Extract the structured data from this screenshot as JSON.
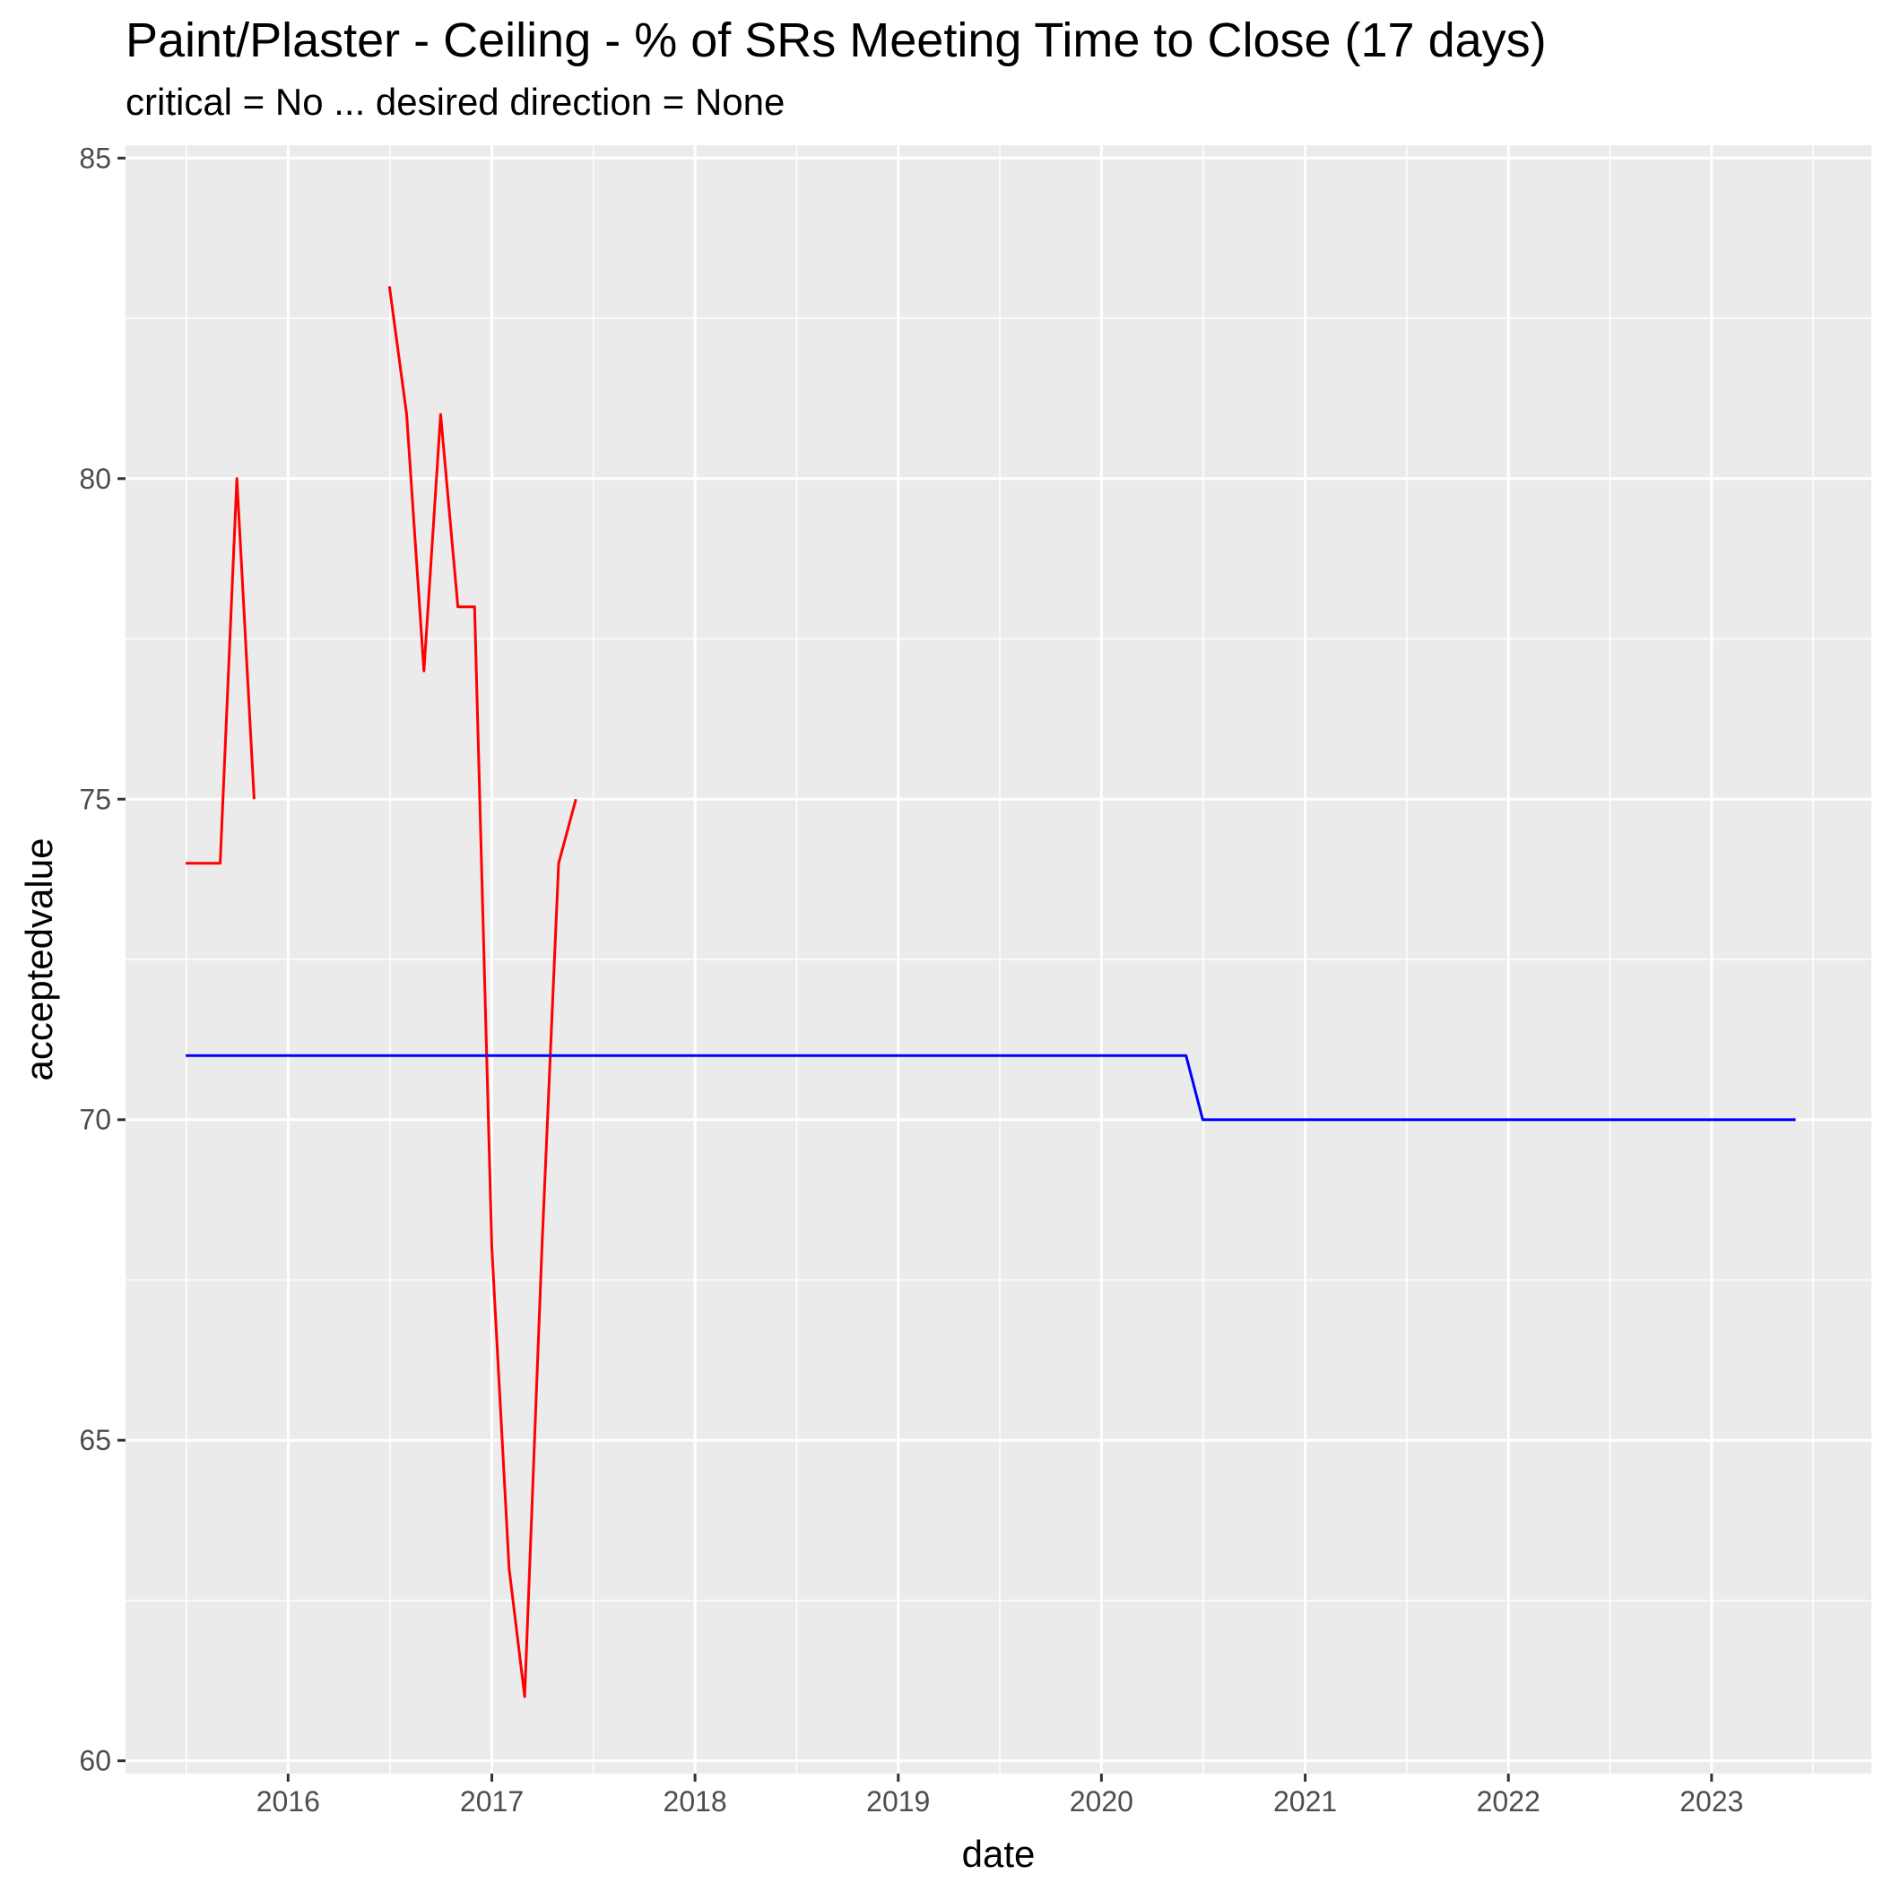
{
  "chart_data": {
    "type": "line",
    "title": "Paint/Plaster - Ceiling - % of SRs Meeting Time to Close (17 days)",
    "subtitle": "critical = No ... desired direction = None",
    "xlabel": "date",
    "ylabel": "acceptedvalue",
    "xlim": [
      "2015-03-15",
      "2023-10-15"
    ],
    "ylim": [
      59.8,
      85.2
    ],
    "yticks": [
      60,
      65,
      70,
      75,
      80,
      85
    ],
    "xticks": [
      "2016-01-01",
      "2017-01-01",
      "2018-01-01",
      "2019-01-01",
      "2020-01-01",
      "2021-01-01",
      "2022-01-01",
      "2023-01-01"
    ],
    "xtick_labels": [
      "2016",
      "2017",
      "2018",
      "2019",
      "2020",
      "2021",
      "2022",
      "2023"
    ],
    "grid": true,
    "background": "#ebebeb",
    "series": [
      {
        "color": "#ff0000",
        "segments": [
          [
            {
              "x": "2015-07-01",
              "y": 74
            },
            {
              "x": "2015-08-01",
              "y": 74
            },
            {
              "x": "2015-09-01",
              "y": 74
            },
            {
              "x": "2015-10-01",
              "y": 80
            },
            {
              "x": "2015-11-01",
              "y": 75
            }
          ],
          [
            {
              "x": "2016-07-01",
              "y": 83
            },
            {
              "x": "2016-08-01",
              "y": 81
            },
            {
              "x": "2016-09-01",
              "y": 77
            },
            {
              "x": "2016-10-01",
              "y": 81
            },
            {
              "x": "2016-11-01",
              "y": 78
            },
            {
              "x": "2016-12-01",
              "y": 78
            },
            {
              "x": "2017-01-01",
              "y": 68
            },
            {
              "x": "2017-02-01",
              "y": 63
            },
            {
              "x": "2017-03-01",
              "y": 61
            },
            {
              "x": "2017-04-01",
              "y": 68
            },
            {
              "x": "2017-05-01",
              "y": 74
            },
            {
              "x": "2017-06-01",
              "y": 75
            }
          ]
        ]
      },
      {
        "color": "#0000ff",
        "segments": [
          [
            {
              "x": "2015-07-01",
              "y": 71
            },
            {
              "x": "2020-06-01",
              "y": 71
            },
            {
              "x": "2020-07-01",
              "y": 70
            },
            {
              "x": "2023-06-01",
              "y": 70
            }
          ]
        ]
      }
    ]
  }
}
